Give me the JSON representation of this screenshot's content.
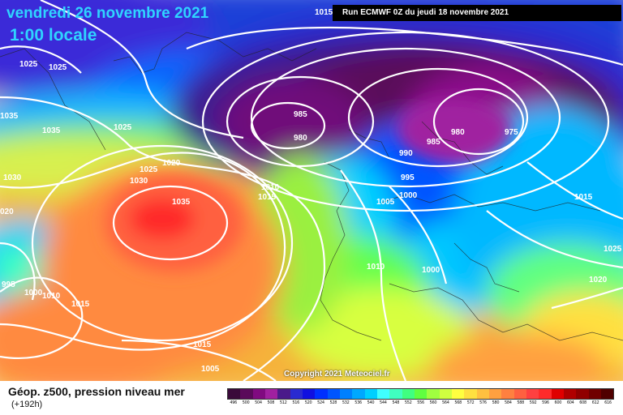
{
  "header": {
    "date": "vendredi 26 novembre 2021",
    "time": "1:00 locale",
    "run": "Run ECMWF 0Z du jeudi 18 novembre 2021"
  },
  "footer": {
    "title": "Géop. z500, pression niveau mer",
    "lead": "(+192h)",
    "copyright": "Copyright 2021 Meteociel.fr"
  },
  "legend": {
    "values": [
      "496",
      "500",
      "504",
      "508",
      "512",
      "516",
      "520",
      "524",
      "528",
      "532",
      "536",
      "540",
      "544",
      "548",
      "552",
      "556",
      "560",
      "564",
      "568",
      "572",
      "576",
      "580",
      "584",
      "588",
      "592",
      "596",
      "600",
      "604",
      "608",
      "612",
      "616"
    ],
    "colors": [
      "#3a0a3a",
      "#5a0a5a",
      "#800a80",
      "#a020a0",
      "#4a1a8a",
      "#2a2ad0",
      "#1010e0",
      "#0030ff",
      "#0055ff",
      "#0080ff",
      "#00a8ff",
      "#00d0ff",
      "#40ffff",
      "#40ffc0",
      "#40ff80",
      "#60ff40",
      "#a0ff40",
      "#d0ff40",
      "#ffff40",
      "#ffe040",
      "#ffc040",
      "#ffa040",
      "#ff8040",
      "#ff6040",
      "#ff4040",
      "#ff2a2a",
      "#e00000",
      "#b00000",
      "#900000",
      "#700000",
      "#500000"
    ]
  },
  "isobar_labels": [
    {
      "text": "1015"
    },
    {
      "text": "1025"
    },
    {
      "text": "1025"
    },
    {
      "text": "1035"
    },
    {
      "text": "1035"
    },
    {
      "text": "1025"
    },
    {
      "text": "1030"
    },
    {
      "text": "1020"
    },
    {
      "text": "1030"
    },
    {
      "text": "1025"
    },
    {
      "text": "1035"
    },
    {
      "text": "1010"
    },
    {
      "text": "1015"
    },
    {
      "text": "985"
    },
    {
      "text": "980"
    },
    {
      "text": "985"
    },
    {
      "text": "990"
    },
    {
      "text": "980"
    },
    {
      "text": "975"
    },
    {
      "text": "995"
    },
    {
      "text": "1005"
    },
    {
      "text": "1000"
    },
    {
      "text": "1015"
    },
    {
      "text": "1010"
    },
    {
      "text": "1000"
    },
    {
      "text": "1025"
    },
    {
      "text": "1020"
    },
    {
      "text": "995"
    },
    {
      "text": "1000"
    },
    {
      "text": "1010"
    },
    {
      "text": "1015"
    },
    {
      "text": "1015"
    },
    {
      "text": "1005"
    },
    {
      "text": "020"
    }
  ]
}
